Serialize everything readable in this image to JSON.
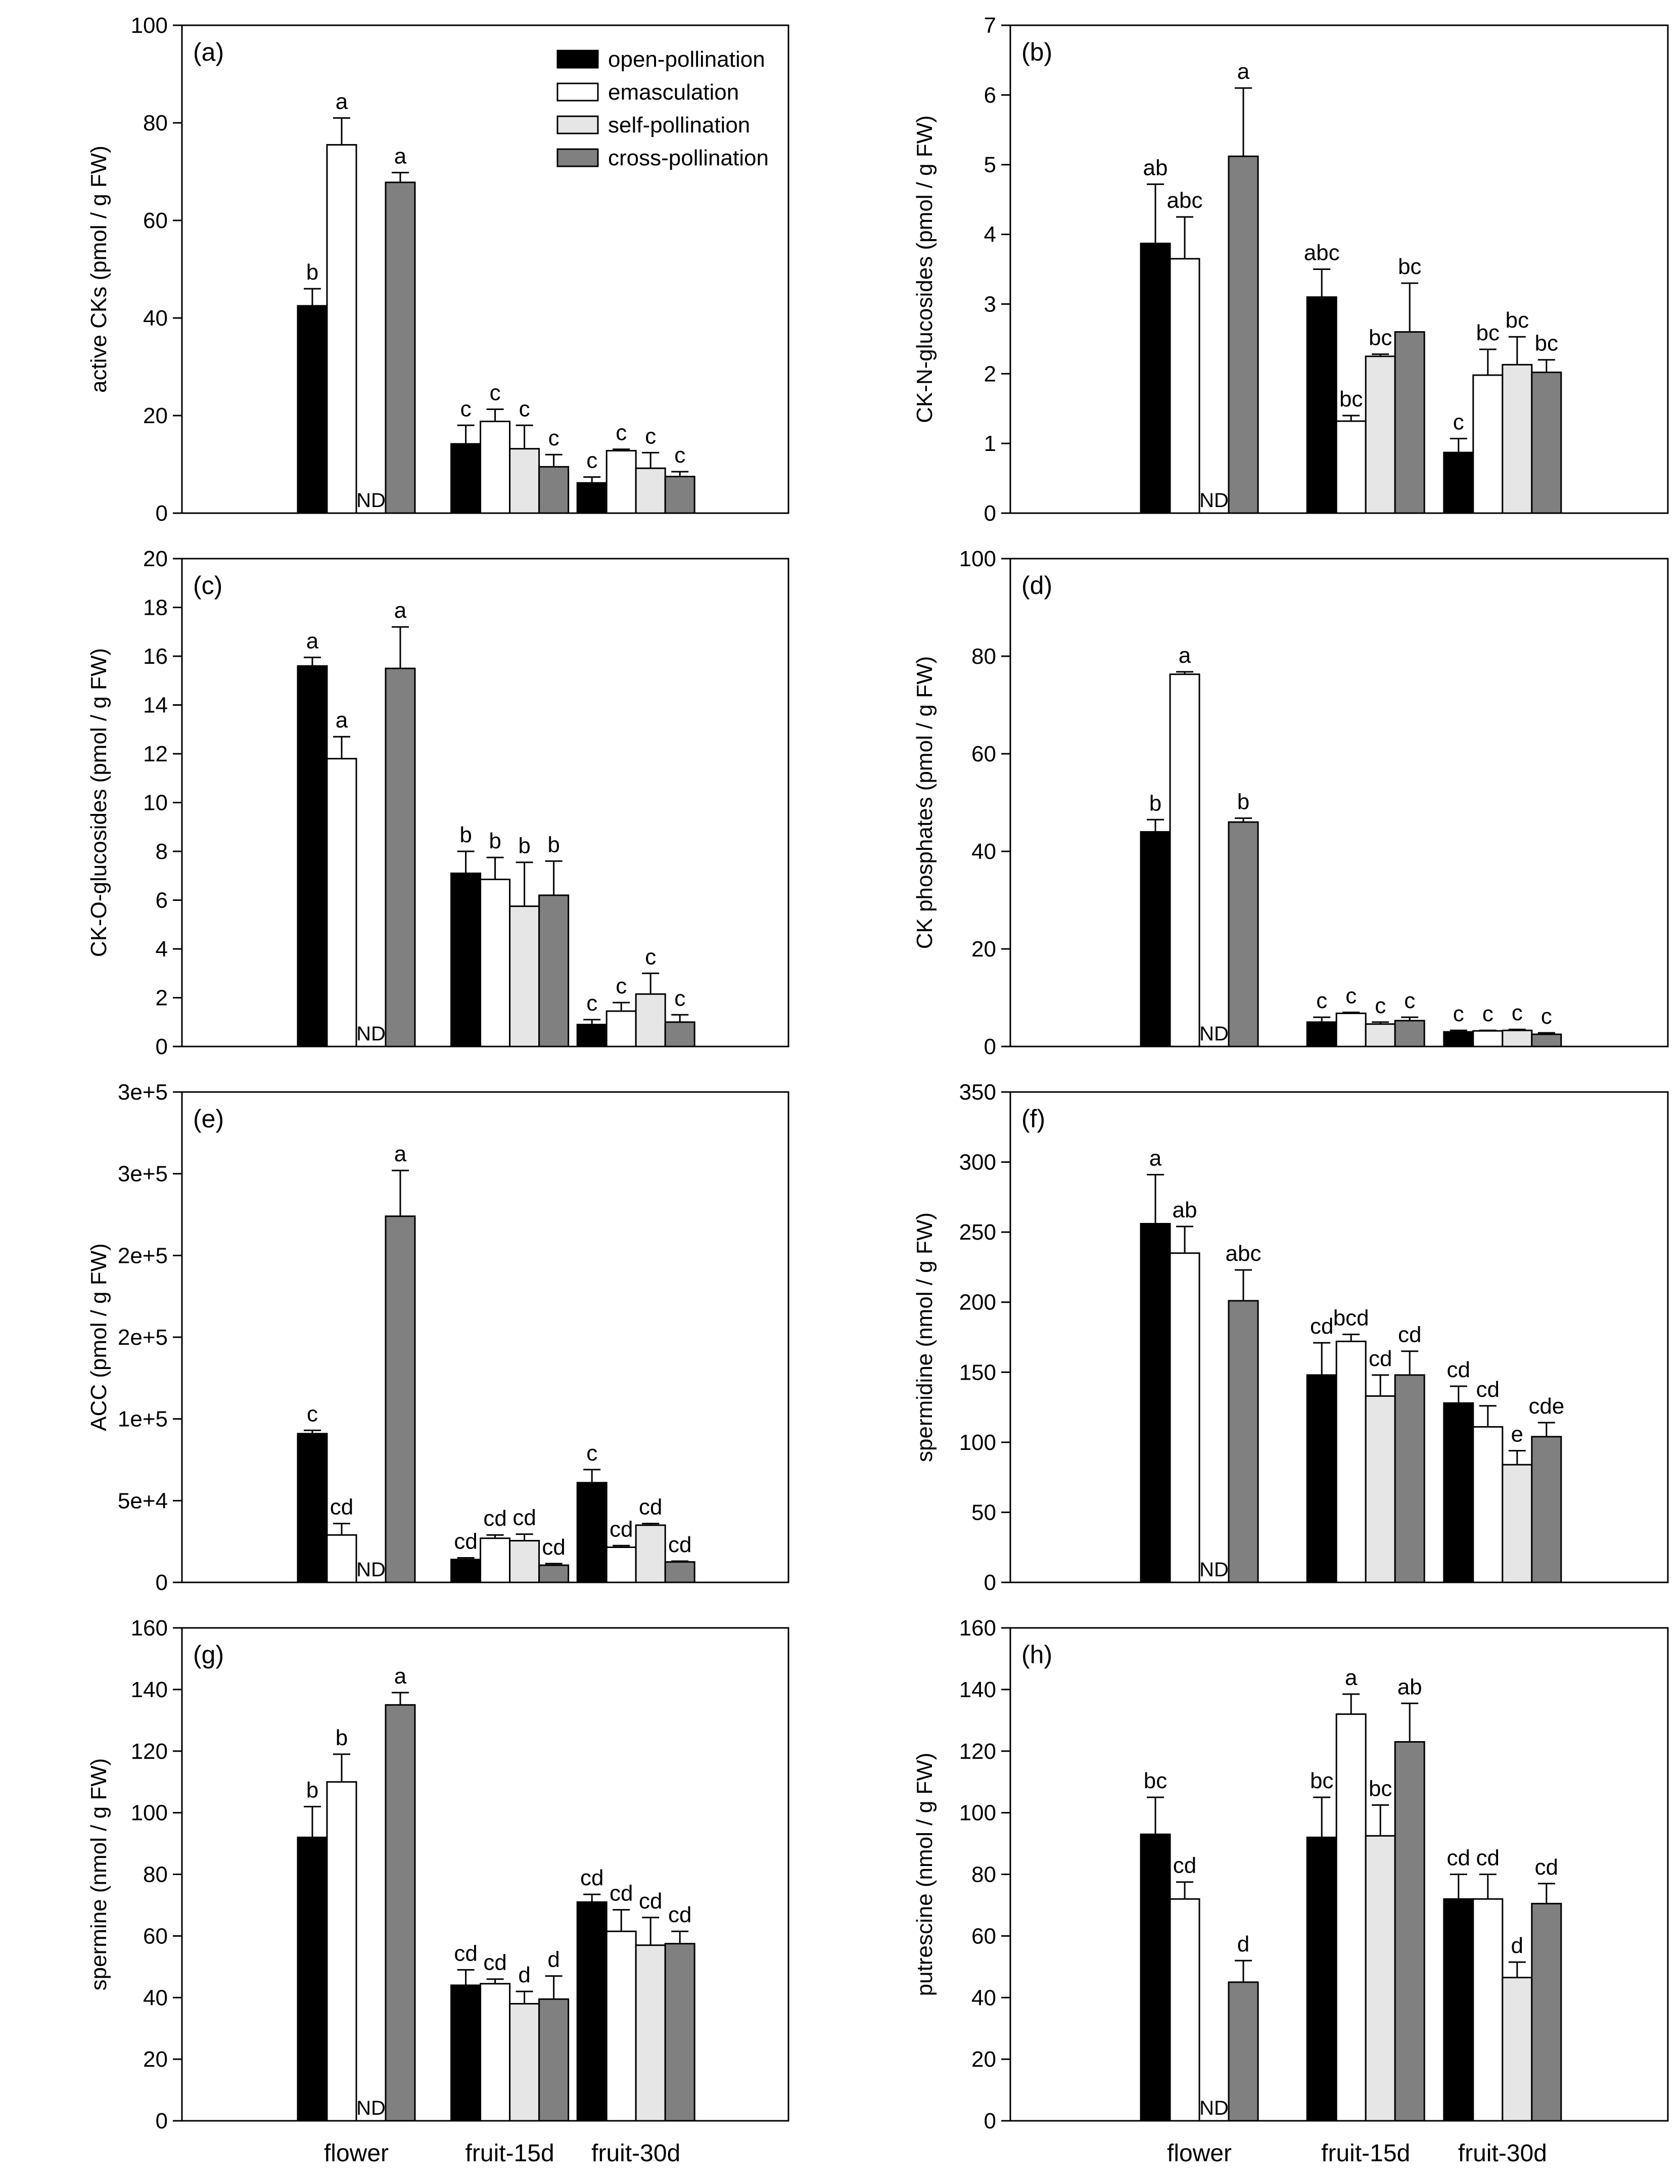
{
  "colors": {
    "open-pollination": "#000000",
    "emasculation": "#ffffff",
    "self-pollination": "#e6e6e6",
    "cross-pollination": "#808080"
  },
  "legend": [
    "open-pollination",
    "emasculation",
    "self-pollination",
    "cross-pollination"
  ],
  "x_categories": [
    "flower",
    "fruit-15d",
    "fruit-30d"
  ],
  "nd_text": "ND",
  "chart_data": [
    {
      "type": "bar",
      "panel": "(a)",
      "ylabel": "active CKs (pmol / g FW)",
      "ylim": [
        0,
        100
      ],
      "yticks": [
        "0",
        "20",
        "40",
        "60",
        "80",
        "100"
      ],
      "series": [
        {
          "name": "open-pollination",
          "values": [
            42.5,
            14.2,
            6.2
          ],
          "errors": [
            3.5,
            3.8,
            1.2
          ],
          "letters": [
            "b",
            "c",
            "c"
          ]
        },
        {
          "name": "emasculation",
          "values": [
            75.5,
            18.8,
            12.8
          ],
          "errors": [
            5.5,
            2.5,
            0.3
          ],
          "letters": [
            "a",
            "c",
            "c"
          ]
        },
        {
          "name": "self-pollination",
          "values": [
            null,
            13.2,
            9.2
          ],
          "errors": [
            null,
            4.8,
            3.2
          ],
          "letters": [
            "ND",
            "c",
            "c"
          ]
        },
        {
          "name": "cross-pollination",
          "values": [
            67.8,
            9.5,
            7.5
          ],
          "errors": [
            2.0,
            2.5,
            1.0
          ],
          "letters": [
            "a",
            "c",
            "c"
          ]
        }
      ]
    },
    {
      "type": "bar",
      "panel": "(b)",
      "ylabel": "CK-N-glucosides (pmol / g FW)",
      "ylim": [
        0,
        7
      ],
      "yticks": [
        "0",
        "1",
        "2",
        "3",
        "4",
        "5",
        "6",
        "7"
      ],
      "series": [
        {
          "name": "open-pollination",
          "values": [
            3.87,
            3.1,
            0.87
          ],
          "errors": [
            0.85,
            0.4,
            0.2
          ],
          "letters": [
            "ab",
            "abc",
            "c"
          ]
        },
        {
          "name": "emasculation",
          "values": [
            3.65,
            1.32,
            1.98
          ],
          "errors": [
            0.6,
            0.08,
            0.37
          ],
          "letters": [
            "abc",
            "bc",
            "bc"
          ]
        },
        {
          "name": "self-pollination",
          "values": [
            null,
            2.25,
            2.13
          ],
          "errors": [
            null,
            0.03,
            0.4
          ],
          "letters": [
            "ND",
            "bc",
            "bc"
          ]
        },
        {
          "name": "cross-pollination",
          "values": [
            5.12,
            2.6,
            2.02
          ],
          "errors": [
            0.98,
            0.7,
            0.18
          ],
          "letters": [
            "a",
            "bc",
            "bc"
          ]
        }
      ]
    },
    {
      "type": "bar",
      "panel": "(c)",
      "ylabel": "CK-O-glucosides (pmol / g FW)",
      "ylim": [
        0,
        20
      ],
      "yticks": [
        "0",
        "2",
        "4",
        "6",
        "8",
        "10",
        "12",
        "14",
        "16",
        "18",
        "20"
      ],
      "series": [
        {
          "name": "open-pollination",
          "values": [
            15.6,
            7.1,
            0.9
          ],
          "errors": [
            0.35,
            0.9,
            0.2
          ],
          "letters": [
            "a",
            "b",
            "c"
          ]
        },
        {
          "name": "emasculation",
          "values": [
            11.8,
            6.85,
            1.45
          ],
          "errors": [
            0.9,
            0.9,
            0.35
          ],
          "letters": [
            "a",
            "b",
            "c"
          ]
        },
        {
          "name": "self-pollination",
          "values": [
            null,
            5.75,
            2.15
          ],
          "errors": [
            null,
            1.8,
            0.85
          ],
          "letters": [
            "ND",
            "b",
            "c"
          ]
        },
        {
          "name": "cross-pollination",
          "values": [
            15.5,
            6.2,
            1.0
          ],
          "errors": [
            1.7,
            1.4,
            0.3
          ],
          "letters": [
            "a",
            "b",
            "c"
          ]
        }
      ]
    },
    {
      "type": "bar",
      "panel": "(d)",
      "ylabel": "CK phosphates (pmol / g FW)",
      "ylim": [
        0,
        100
      ],
      "yticks": [
        "0",
        "20",
        "40",
        "60",
        "80",
        "100"
      ],
      "series": [
        {
          "name": "open-pollination",
          "values": [
            44.0,
            5.0,
            3.0
          ],
          "errors": [
            2.5,
            1.0,
            0.3
          ],
          "letters": [
            "b",
            "c",
            "c"
          ]
        },
        {
          "name": "emasculation",
          "values": [
            76.3,
            6.8,
            3.2
          ],
          "errors": [
            0.5,
            0.2,
            0.1
          ],
          "letters": [
            "a",
            "c",
            "c"
          ]
        },
        {
          "name": "self-pollination",
          "values": [
            null,
            4.6,
            3.3
          ],
          "errors": [
            null,
            0.4,
            0.2
          ],
          "letters": [
            "ND",
            "c",
            "c"
          ]
        },
        {
          "name": "cross-pollination",
          "values": [
            46.0,
            5.3,
            2.5
          ],
          "errors": [
            0.8,
            0.7,
            0.3
          ],
          "letters": [
            "b",
            "c",
            "c"
          ]
        }
      ]
    },
    {
      "type": "bar",
      "panel": "(e)",
      "ylabel": "ACC (pmol / g FW)",
      "ylim": [
        0,
        300000
      ],
      "yticks": [
        "0",
        "5e+4",
        "1e+5",
        "2e+5",
        "2e+5",
        "3e+5",
        "3e+5"
      ],
      "series": [
        {
          "name": "open-pollination",
          "values": [
            91000,
            14000,
            61000
          ],
          "errors": [
            2000,
            1000,
            8000
          ],
          "letters": [
            "c",
            "cd",
            "c"
          ]
        },
        {
          "name": "emasculation",
          "values": [
            29000,
            27000,
            21500
          ],
          "errors": [
            7000,
            2000,
            1000
          ],
          "letters": [
            "cd",
            "cd",
            "cd"
          ]
        },
        {
          "name": "self-pollination",
          "values": [
            null,
            25500,
            35000
          ],
          "errors": [
            null,
            4000,
            1000
          ],
          "letters": [
            "ND",
            "cd",
            "cd"
          ]
        },
        {
          "name": "cross-pollination",
          "values": [
            224000,
            10500,
            12500
          ],
          "errors": [
            28000,
            1000,
            500
          ],
          "letters": [
            "a",
            "cd",
            "cd"
          ]
        }
      ]
    },
    {
      "type": "bar",
      "panel": "(f)",
      "ylabel": "spermidine (nmol / g FW)",
      "ylim": [
        0,
        350
      ],
      "yticks": [
        "0",
        "50",
        "100",
        "150",
        "200",
        "250",
        "300",
        "350"
      ],
      "series": [
        {
          "name": "open-pollination",
          "values": [
            256,
            148,
            128
          ],
          "errors": [
            35,
            23,
            12
          ],
          "letters": [
            "a",
            "cd",
            "cd"
          ]
        },
        {
          "name": "emasculation",
          "values": [
            235,
            172,
            111
          ],
          "errors": [
            19,
            5,
            15
          ],
          "letters": [
            "ab",
            "bcd",
            "cd"
          ]
        },
        {
          "name": "self-pollination",
          "values": [
            null,
            133,
            84
          ],
          "errors": [
            null,
            15,
            10
          ],
          "letters": [
            "ND",
            "cd",
            "e"
          ]
        },
        {
          "name": "cross-pollination",
          "values": [
            201,
            148,
            104
          ],
          "errors": [
            22,
            17,
            10
          ],
          "letters": [
            "abc",
            "cd",
            "cde"
          ]
        }
      ]
    },
    {
      "type": "bar",
      "panel": "(g)",
      "ylabel": "spermine (nmol / g FW)",
      "ylim": [
        0,
        160
      ],
      "yticks": [
        "0",
        "20",
        "40",
        "60",
        "80",
        "100",
        "120",
        "140",
        "160"
      ],
      "series": [
        {
          "name": "open-pollination",
          "values": [
            92,
            44,
            71
          ],
          "errors": [
            10,
            5,
            2.5
          ],
          "letters": [
            "b",
            "cd",
            "cd"
          ]
        },
        {
          "name": "emasculation",
          "values": [
            110,
            44.5,
            61.5
          ],
          "errors": [
            9,
            1.5,
            7
          ],
          "letters": [
            "b",
            "cd",
            "cd"
          ]
        },
        {
          "name": "self-pollination",
          "values": [
            null,
            38,
            57
          ],
          "errors": [
            null,
            4,
            9
          ],
          "letters": [
            "ND",
            "d",
            "cd"
          ]
        },
        {
          "name": "cross-pollination",
          "values": [
            135,
            39.5,
            57.5
          ],
          "errors": [
            4,
            7.5,
            4
          ],
          "letters": [
            "a",
            "d",
            "cd"
          ]
        }
      ]
    },
    {
      "type": "bar",
      "panel": "(h)",
      "ylabel": "putrescine (nmol / g FW)",
      "ylim": [
        0,
        160
      ],
      "yticks": [
        "0",
        "20",
        "40",
        "60",
        "80",
        "100",
        "120",
        "140",
        "160"
      ],
      "series": [
        {
          "name": "open-pollination",
          "values": [
            93,
            92,
            72
          ],
          "errors": [
            12,
            13,
            8
          ],
          "letters": [
            "bc",
            "bc",
            "cd"
          ]
        },
        {
          "name": "emasculation",
          "values": [
            72,
            132,
            72
          ],
          "errors": [
            5.5,
            6.5,
            8
          ],
          "letters": [
            "cd",
            "a",
            "cd"
          ]
        },
        {
          "name": "self-pollination",
          "values": [
            null,
            92.5,
            46.5
          ],
          "errors": [
            null,
            10,
            5
          ],
          "letters": [
            "ND",
            "bc",
            "d"
          ]
        },
        {
          "name": "cross-pollination",
          "values": [
            45,
            123,
            70.5
          ],
          "errors": [
            7,
            12.5,
            6.5
          ],
          "letters": [
            "d",
            "ab",
            "cd"
          ]
        }
      ]
    }
  ]
}
